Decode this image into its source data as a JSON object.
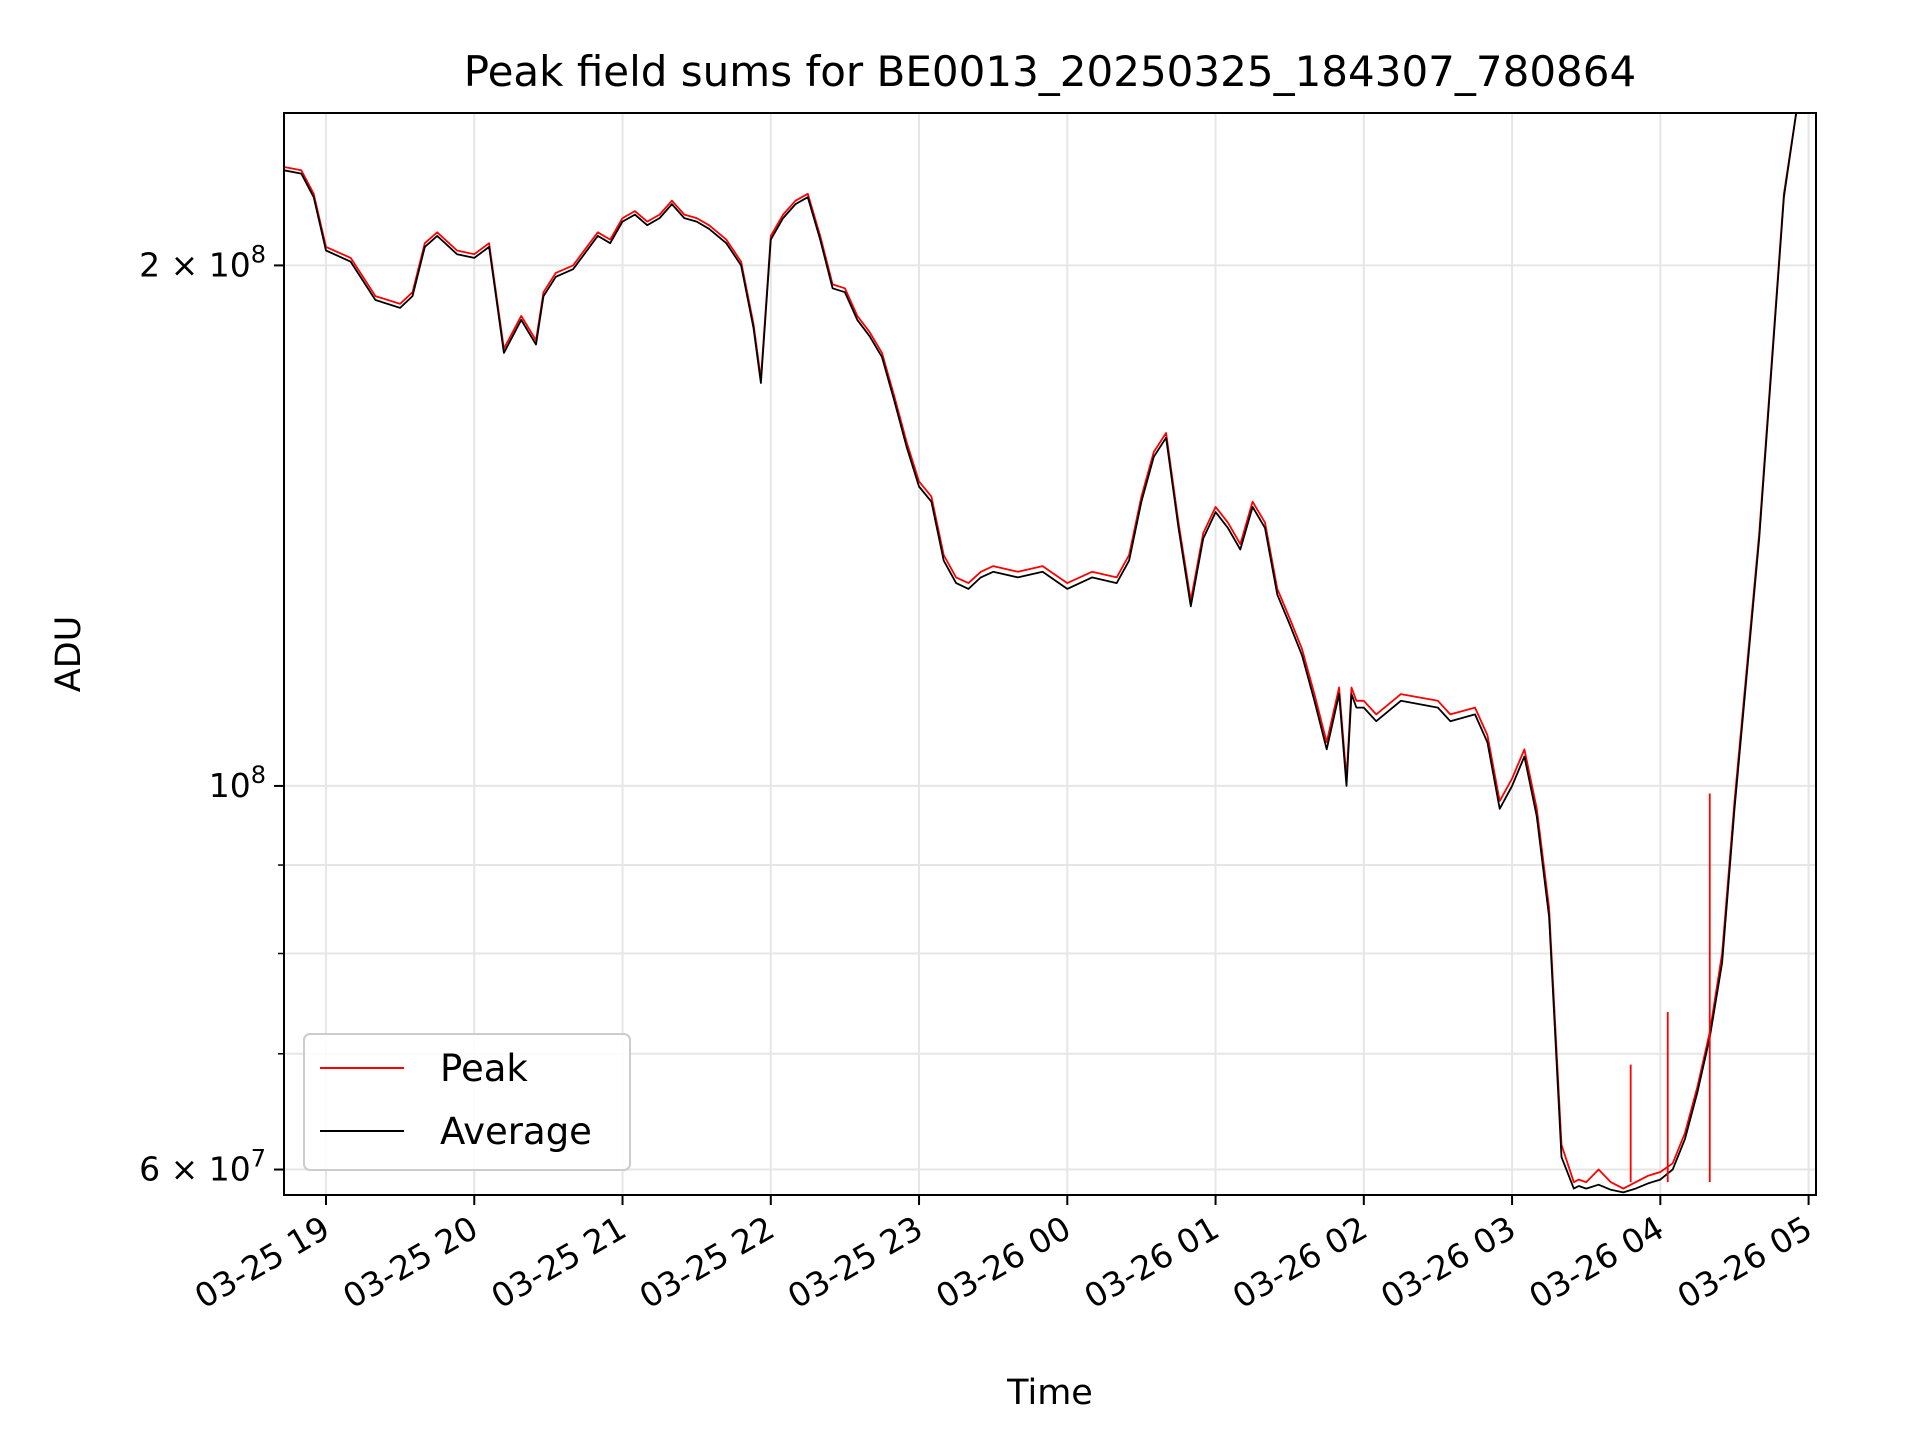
{
  "chart_data": {
    "type": "line",
    "title": "Peak field sums for BE0013_20250325_184307_780864",
    "xlabel": "Time",
    "ylabel": "ADU",
    "y_scale": "log",
    "ylim": [
      58000000,
      245000000
    ],
    "xlim": [
      "2025-03-25 18:43",
      "2025-03-26 05:03"
    ],
    "grid": true,
    "legend": "lower-left",
    "x_ticks": [
      "03-25 19",
      "03-25 20",
      "03-25 21",
      "03-25 22",
      "03-25 23",
      "03-26 00",
      "03-26 01",
      "03-26 02",
      "03-26 03",
      "03-26 04",
      "03-26 05"
    ],
    "x_tick_times": [
      "2025-03-25 19:00",
      "2025-03-25 20:00",
      "2025-03-25 21:00",
      "2025-03-25 22:00",
      "2025-03-25 23:00",
      "2025-03-26 00:00",
      "2025-03-26 01:00",
      "2025-03-26 02:00",
      "2025-03-26 03:00",
      "2025-03-26 04:00",
      "2025-03-26 05:00"
    ],
    "y_ticks": [
      {
        "value": 60000000,
        "base": "6 × 10",
        "exp": "7"
      },
      {
        "value": 100000000,
        "base": "10",
        "exp": "8"
      },
      {
        "value": 200000000,
        "base": "2 × 10",
        "exp": "8"
      }
    ],
    "y_minor_ticks": [
      70000000,
      80000000,
      90000000
    ],
    "series": [
      {
        "name": "Peak",
        "color": "#ff0000",
        "x": [
          "2025-03-25 18:43",
          "2025-03-25 18:50",
          "2025-03-25 18:55",
          "2025-03-25 19:00",
          "2025-03-25 19:10",
          "2025-03-25 19:20",
          "2025-03-25 19:30",
          "2025-03-25 19:35",
          "2025-03-25 19:40",
          "2025-03-25 19:45",
          "2025-03-25 19:53",
          "2025-03-25 20:00",
          "2025-03-25 20:06",
          "2025-03-25 20:12",
          "2025-03-25 20:19",
          "2025-03-25 20:25",
          "2025-03-25 20:28",
          "2025-03-25 20:33",
          "2025-03-25 20:40",
          "2025-03-25 20:50",
          "2025-03-25 20:55",
          "2025-03-25 21:00",
          "2025-03-25 21:05",
          "2025-03-25 21:10",
          "2025-03-25 21:15",
          "2025-03-25 21:20",
          "2025-03-25 21:25",
          "2025-03-25 21:30",
          "2025-03-25 21:35",
          "2025-03-25 21:42",
          "2025-03-25 21:48",
          "2025-03-25 21:53",
          "2025-03-25 21:56",
          "2025-03-25 22:00",
          "2025-03-25 22:05",
          "2025-03-25 22:10",
          "2025-03-25 22:15",
          "2025-03-25 22:20",
          "2025-03-25 22:25",
          "2025-03-25 22:30",
          "2025-03-25 22:35",
          "2025-03-25 22:40",
          "2025-03-25 22:45",
          "2025-03-25 22:50",
          "2025-03-25 22:55",
          "2025-03-25 23:00",
          "2025-03-25 23:05",
          "2025-03-25 23:10",
          "2025-03-25 23:15",
          "2025-03-25 23:20",
          "2025-03-25 23:25",
          "2025-03-25 23:30",
          "2025-03-25 23:40",
          "2025-03-25 23:50",
          "2025-03-26 00:00",
          "2025-03-26 00:10",
          "2025-03-26 00:20",
          "2025-03-26 00:25",
          "2025-03-26 00:30",
          "2025-03-26 00:35",
          "2025-03-26 00:40",
          "2025-03-26 00:45",
          "2025-03-26 00:50",
          "2025-03-26 00:55",
          "2025-03-26 01:00",
          "2025-03-26 01:05",
          "2025-03-26 01:10",
          "2025-03-26 01:15",
          "2025-03-26 01:20",
          "2025-03-26 01:25",
          "2025-03-26 01:30",
          "2025-03-26 01:35",
          "2025-03-26 01:40",
          "2025-03-26 01:45",
          "2025-03-26 01:50",
          "2025-03-26 01:53",
          "2025-03-26 01:55",
          "2025-03-26 01:57",
          "2025-03-26 02:00",
          "2025-03-26 02:05",
          "2025-03-26 02:15",
          "2025-03-26 02:30",
          "2025-03-26 02:35",
          "2025-03-26 02:45",
          "2025-03-26 02:50",
          "2025-03-26 02:55",
          "2025-03-26 03:00",
          "2025-03-26 03:05",
          "2025-03-26 03:10",
          "2025-03-26 03:15",
          "2025-03-26 03:20",
          "2025-03-26 03:25",
          "2025-03-26 03:27",
          "2025-03-26 03:30",
          "2025-03-26 03:35",
          "2025-03-26 03:40",
          "2025-03-26 03:45",
          "2025-03-26 03:50",
          "2025-03-26 03:55",
          "2025-03-26 04:00",
          "2025-03-26 04:05",
          "2025-03-26 04:10",
          "2025-03-26 04:15",
          "2025-03-26 04:20",
          "2025-03-26 04:25",
          "2025-03-26 04:30",
          "2025-03-26 04:40",
          "2025-03-26 04:50",
          "2025-03-26 04:55"
        ],
        "y": [
          228000000,
          227000000,
          220000000,
          205000000,
          202000000,
          192000000,
          190000000,
          193000000,
          206000000,
          209000000,
          204000000,
          203000000,
          206000000,
          179000000,
          187000000,
          181000000,
          193000000,
          198000000,
          200000000,
          209000000,
          207000000,
          213000000,
          215000000,
          212000000,
          214000000,
          218000000,
          214000000,
          213000000,
          211000000,
          207000000,
          201000000,
          185000000,
          172000000,
          208000000,
          214000000,
          218000000,
          220000000,
          208000000,
          195000000,
          194000000,
          187000000,
          183000000,
          178000000,
          168000000,
          158000000,
          150000000,
          147000000,
          136000000,
          132000000,
          131000000,
          133000000,
          134000000,
          133000000,
          134000000,
          131000000,
          133000000,
          132000000,
          136000000,
          147000000,
          156000000,
          160000000,
          142000000,
          128000000,
          140000000,
          145000000,
          142000000,
          138000000,
          146000000,
          142000000,
          130000000,
          125000000,
          120000000,
          113000000,
          106000000,
          114000000,
          101000000,
          114000000,
          112000000,
          112000000,
          110000000,
          113000000,
          112000000,
          110000000,
          111000000,
          107000000,
          98000000,
          101000000,
          105000000,
          97000000,
          85000000,
          62000000,
          59000000,
          59200000,
          59000000,
          60000000,
          59000000,
          58500000,
          59000000,
          59500000,
          59800000,
          60500000,
          63000000,
          67000000,
          72000000,
          80000000,
          98000000,
          140000000,
          220000000,
          245000000
        ]
      },
      {
        "name": "Average",
        "color": "#000000",
        "x": [
          "2025-03-25 18:43",
          "2025-03-25 18:50",
          "2025-03-25 18:55",
          "2025-03-25 19:00",
          "2025-03-25 19:10",
          "2025-03-25 19:20",
          "2025-03-25 19:30",
          "2025-03-25 19:35",
          "2025-03-25 19:40",
          "2025-03-25 19:45",
          "2025-03-25 19:53",
          "2025-03-25 20:00",
          "2025-03-25 20:06",
          "2025-03-25 20:12",
          "2025-03-25 20:19",
          "2025-03-25 20:25",
          "2025-03-25 20:28",
          "2025-03-25 20:33",
          "2025-03-25 20:40",
          "2025-03-25 20:50",
          "2025-03-25 20:55",
          "2025-03-25 21:00",
          "2025-03-25 21:05",
          "2025-03-25 21:10",
          "2025-03-25 21:15",
          "2025-03-25 21:20",
          "2025-03-25 21:25",
          "2025-03-25 21:30",
          "2025-03-25 21:35",
          "2025-03-25 21:42",
          "2025-03-25 21:48",
          "2025-03-25 21:53",
          "2025-03-25 21:56",
          "2025-03-25 22:00",
          "2025-03-25 22:05",
          "2025-03-25 22:10",
          "2025-03-25 22:15",
          "2025-03-25 22:20",
          "2025-03-25 22:25",
          "2025-03-25 22:30",
          "2025-03-25 22:35",
          "2025-03-25 22:40",
          "2025-03-25 22:45",
          "2025-03-25 22:50",
          "2025-03-25 22:55",
          "2025-03-25 23:00",
          "2025-03-25 23:05",
          "2025-03-25 23:10",
          "2025-03-25 23:15",
          "2025-03-25 23:20",
          "2025-03-25 23:25",
          "2025-03-25 23:30",
          "2025-03-25 23:40",
          "2025-03-25 23:50",
          "2025-03-26 00:00",
          "2025-03-26 00:10",
          "2025-03-26 00:20",
          "2025-03-26 00:25",
          "2025-03-26 00:30",
          "2025-03-26 00:35",
          "2025-03-26 00:40",
          "2025-03-26 00:45",
          "2025-03-26 00:50",
          "2025-03-26 00:55",
          "2025-03-26 01:00",
          "2025-03-26 01:05",
          "2025-03-26 01:10",
          "2025-03-26 01:15",
          "2025-03-26 01:20",
          "2025-03-26 01:25",
          "2025-03-26 01:30",
          "2025-03-26 01:35",
          "2025-03-26 01:40",
          "2025-03-26 01:45",
          "2025-03-26 01:50",
          "2025-03-26 01:53",
          "2025-03-26 01:55",
          "2025-03-26 01:57",
          "2025-03-26 02:00",
          "2025-03-26 02:05",
          "2025-03-26 02:15",
          "2025-03-26 02:30",
          "2025-03-26 02:35",
          "2025-03-26 02:45",
          "2025-03-26 02:50",
          "2025-03-26 02:55",
          "2025-03-26 03:00",
          "2025-03-26 03:05",
          "2025-03-26 03:10",
          "2025-03-26 03:15",
          "2025-03-26 03:20",
          "2025-03-26 03:25",
          "2025-03-26 03:27",
          "2025-03-26 03:30",
          "2025-03-26 03:35",
          "2025-03-26 03:40",
          "2025-03-26 03:45",
          "2025-03-26 03:50",
          "2025-03-26 03:55",
          "2025-03-26 04:00",
          "2025-03-26 04:05",
          "2025-03-26 04:10",
          "2025-03-26 04:15",
          "2025-03-26 04:20",
          "2025-03-26 04:25",
          "2025-03-26 04:30",
          "2025-03-26 04:40",
          "2025-03-26 04:50",
          "2025-03-26 04:55"
        ],
        "y": [
          227000000,
          226000000,
          219000000,
          204000000,
          201000000,
          191000000,
          189000000,
          192000000,
          205000000,
          208000000,
          203000000,
          202000000,
          205000000,
          178000000,
          186000000,
          180000000,
          192000000,
          197000000,
          199000000,
          208000000,
          206000000,
          212000000,
          214000000,
          211000000,
          213000000,
          217000000,
          213000000,
          212000000,
          210000000,
          206000000,
          200000000,
          184000000,
          171000000,
          207000000,
          213000000,
          217000000,
          219000000,
          207000000,
          194000000,
          193000000,
          186000000,
          182000000,
          177000000,
          167000000,
          157000000,
          149000000,
          146000000,
          135000000,
          131000000,
          130000000,
          132000000,
          133000000,
          132000000,
          133000000,
          130000000,
          132000000,
          131000000,
          135000000,
          146000000,
          155000000,
          159000000,
          141000000,
          127000000,
          139000000,
          144000000,
          141000000,
          137000000,
          145000000,
          141000000,
          129000000,
          124000000,
          119000000,
          112000000,
          105000000,
          113000000,
          100000000,
          113000000,
          111000000,
          111000000,
          109000000,
          112000000,
          111000000,
          109000000,
          110000000,
          106000000,
          97000000,
          100000000,
          104000000,
          96000000,
          84000000,
          61000000,
          58500000,
          58700000,
          58500000,
          58800000,
          58400000,
          58200000,
          58500000,
          58900000,
          59200000,
          60000000,
          62500000,
          66500000,
          71500000,
          79000000,
          97000000,
          139000000,
          219000000,
          245000000
        ]
      }
    ],
    "spikes": [
      {
        "series": "Peak",
        "x": "2025-03-26 03:48",
        "y": 69000000
      },
      {
        "series": "Peak",
        "x": "2025-03-26 04:03",
        "y": 74000000
      },
      {
        "series": "Peak",
        "x": "2025-03-26 04:20",
        "y": 99000000
      }
    ]
  }
}
